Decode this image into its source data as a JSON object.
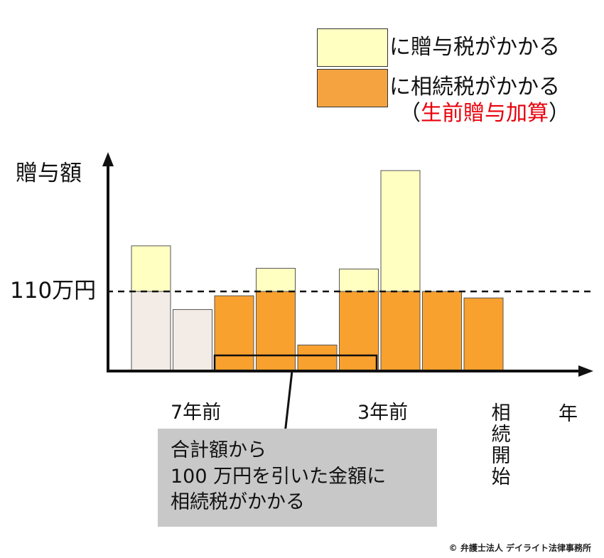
{
  "legend": {
    "gift_tax": {
      "label": "に贈与税がかかる",
      "color": "#ffffc2"
    },
    "inheritance_tax": {
      "label": "に相続税がかかる",
      "color": "#f5a341"
    },
    "note_open": "（",
    "note_red": "生前贈与加算",
    "note_close": "）",
    "note_color": "#e8000b"
  },
  "axes": {
    "y_label": "贈与額",
    "y_threshold_label": "110万円",
    "x_label": "年",
    "tick_7": "7年前",
    "tick_3": "3年前",
    "inheritance_start": "相続開始"
  },
  "callout": {
    "line1": "合計額から",
    "line2": "100 万円を引いた金額に",
    "line3": "相続税がかかる"
  },
  "copyright": "© 弁護士法人 デイライト法律事務所",
  "chart_data": {
    "type": "bar",
    "unit": "万円",
    "threshold": 110,
    "colors": {
      "base_old": "#f3ece6",
      "base_recent": "#f9a12e",
      "excess": "#ffffc2",
      "stroke": "#555555"
    },
    "bars": [
      {
        "base": 110,
        "excess": 63,
        "group": "old"
      },
      {
        "base": 85,
        "excess": 0,
        "group": "old"
      },
      {
        "base": 104,
        "excess": 0,
        "group": "recent"
      },
      {
        "base": 110,
        "excess": 32,
        "group": "recent"
      },
      {
        "base": 36,
        "excess": 0,
        "group": "recent"
      },
      {
        "base": 110,
        "excess": 31,
        "group": "recent"
      },
      {
        "base": 110,
        "excess": 167,
        "group": "recent"
      },
      {
        "base": 110,
        "excess": 0,
        "group": "recent"
      },
      {
        "base": 101,
        "excess": 0,
        "group": "recent"
      }
    ]
  }
}
